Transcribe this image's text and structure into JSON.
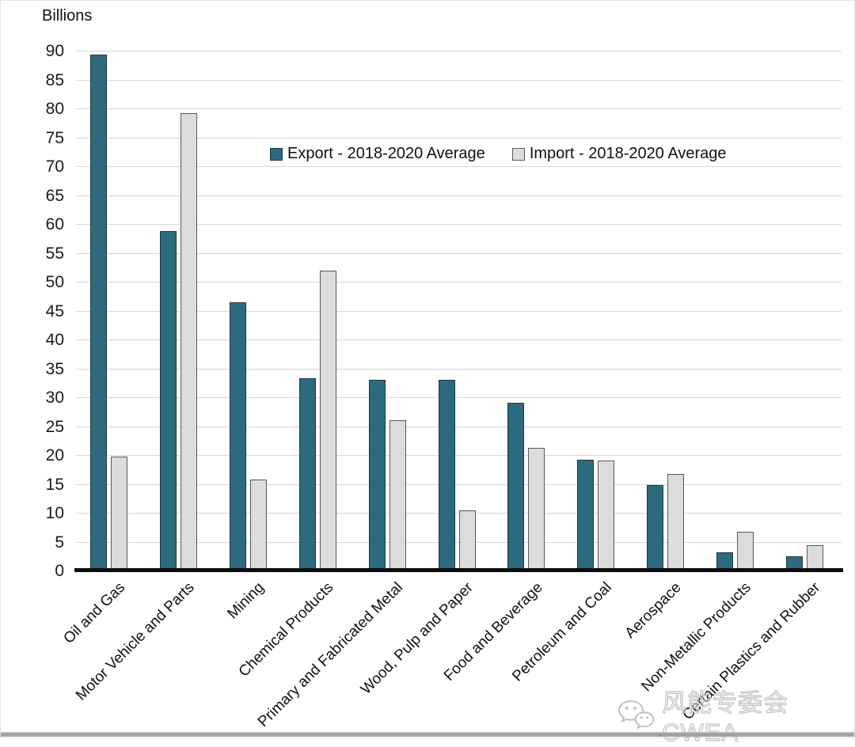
{
  "watermark": {
    "icon": "wechat-icon",
    "text": "风能专委会CWEA"
  },
  "chart_data": {
    "type": "bar",
    "title": "",
    "ylabel": "Billions",
    "xlabel": "",
    "ylim": [
      0,
      90
    ],
    "ytick_step": 5,
    "grid": true,
    "grid_color": "#d6d6d6",
    "axis_color": "#0d0d0d",
    "legend_position": "top-center",
    "categories": [
      "Oil and Gas",
      "Motor Vehicle and Parts",
      "Mining",
      "Chemical Products",
      "Primary and Fabricated Metal",
      "Wood, Pulp and Paper",
      "Food and Beverage",
      "Petroleum and Coal",
      "Aerospace",
      "Non-Metallic Products",
      "Certain Plastics and Rubber"
    ],
    "series": [
      {
        "name": "Export - 2018-2020 Average",
        "color": "#2e6a7e",
        "border_color": "#1c3842",
        "values": [
          89,
          58.5,
          46.2,
          33,
          32.8,
          32.7,
          28.7,
          18.9,
          14.5,
          2.9,
          2.2
        ]
      },
      {
        "name": "Import - 2018-2020 Average",
        "color": "#dcdcdc",
        "border_color": "#595959",
        "values": [
          19.4,
          78.9,
          15.5,
          51.6,
          25.7,
          10.1,
          21,
          18.8,
          16.5,
          6.5,
          4.1
        ]
      }
    ]
  }
}
